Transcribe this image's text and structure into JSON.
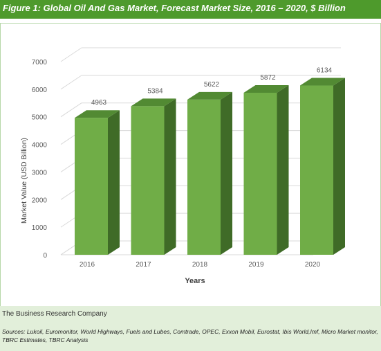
{
  "figure": {
    "title": "Figure 1: Global Oil And Gas Market, Forecast Market Size, 2016 – 2020, $ Billion"
  },
  "chart_data": {
    "type": "bar",
    "categories": [
      "2016",
      "2017",
      "2018",
      "2019",
      "2020"
    ],
    "values": [
      4963,
      5384,
      5622,
      5872,
      6134
    ],
    "data_labels": [
      "4963",
      "5384",
      "5622",
      "5872",
      "6134"
    ],
    "xlabel": "Years",
    "ylabel": "Market Value (USD Billion)",
    "ylim": [
      0,
      7000
    ],
    "yticks": [
      "0",
      "1000",
      "2000",
      "3000",
      "4000",
      "5000",
      "6000",
      "7000"
    ],
    "grid": true,
    "legend": "none",
    "style": "3d-column",
    "colors": {
      "bar_front": "#70ad47",
      "bar_side": "#3f6b27",
      "bar_top": "#528a33",
      "gridline": "#d9d9d9",
      "axis_text": "#595959"
    }
  },
  "footer": {
    "company": "The Business Research Company",
    "sources": "Sources: Lukoil, Euromonitor, World Highways, Fuels and Lubes, Comtrade, OPEC, Exxon Mobil, Eurostat, Ibis World,Imf, Micro Market monitor, TBRC Estimates, TBRC Analysis"
  },
  "colors": {
    "title_bar": "#4e9a2c",
    "footer_bg": "#e2efda",
    "frame": "#b6d7a8"
  }
}
